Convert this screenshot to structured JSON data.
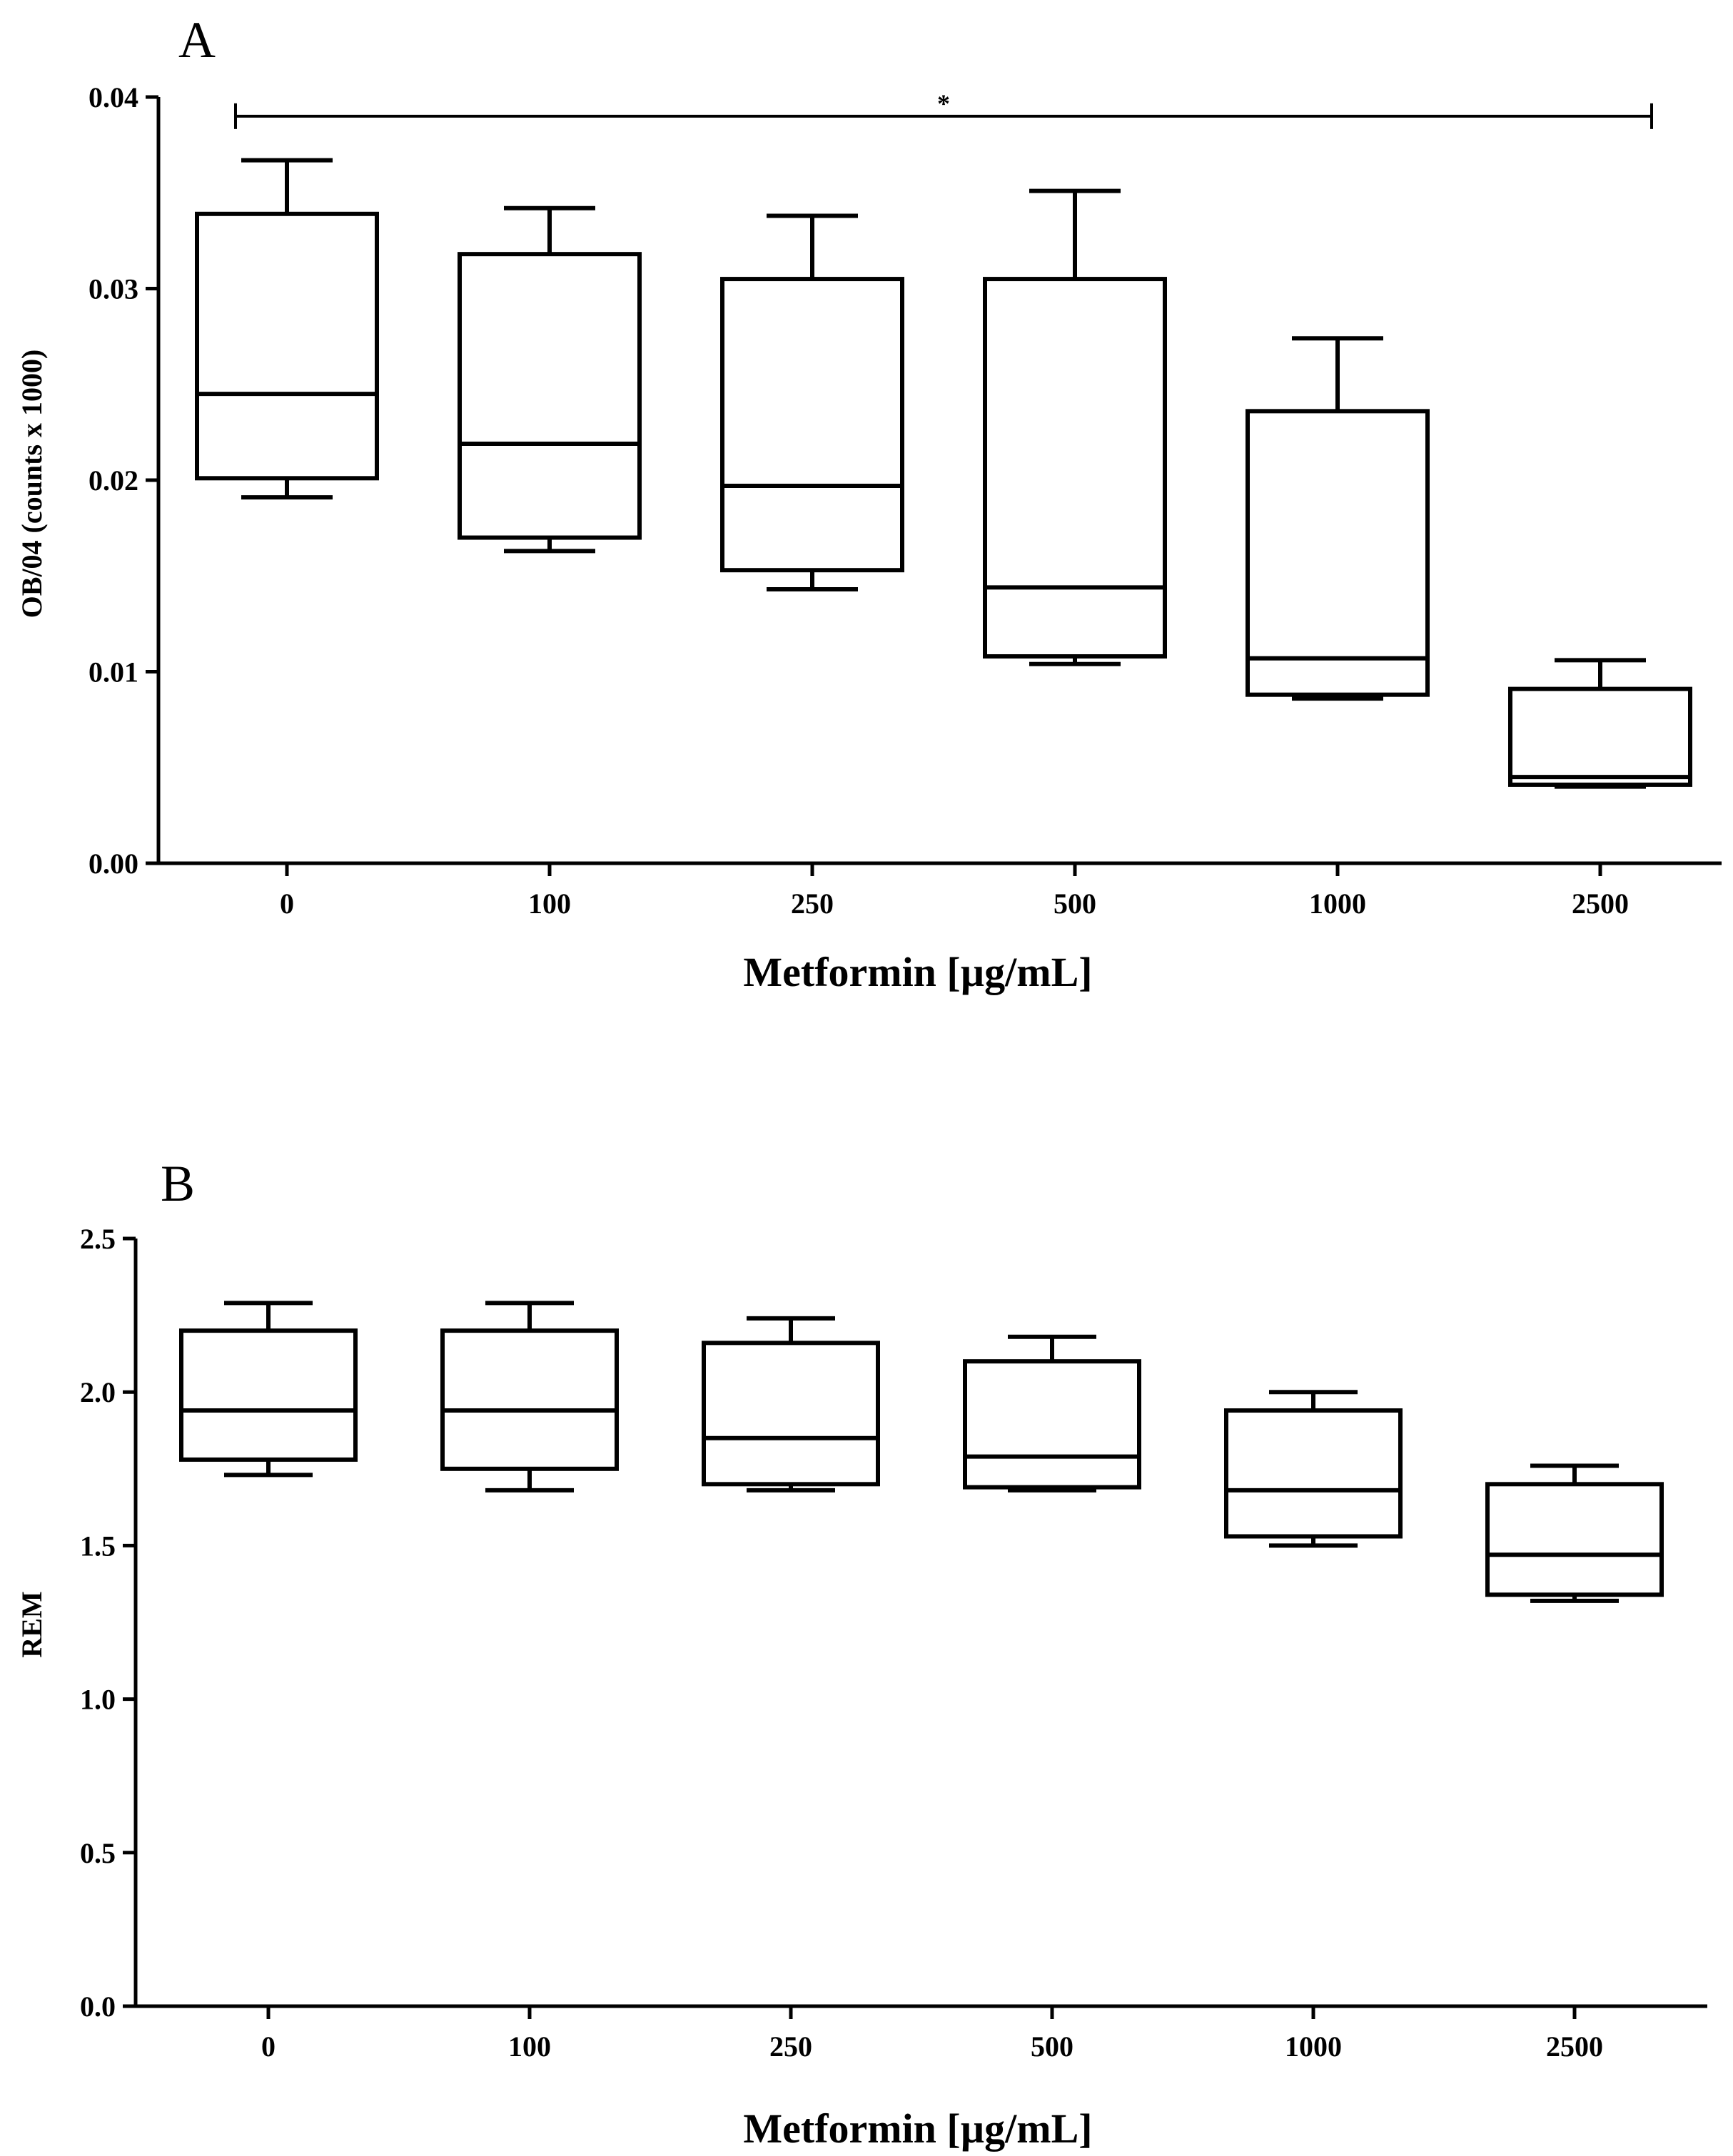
{
  "chart_data": [
    {
      "type": "box",
      "panel_label": "A",
      "categories": [
        "0",
        "100",
        "250",
        "500",
        "1000",
        "2500"
      ],
      "xlabel": "Metformin [µg/mL]",
      "ylabel": "OB/04 (counts x 1000)",
      "ylim": [
        0,
        0.04
      ],
      "yticks": [
        0.0,
        0.01,
        0.02,
        0.03,
        0.04
      ],
      "ytick_labels": [
        "0.00",
        "0.01",
        "0.02",
        "0.03",
        "0.04"
      ],
      "boxes": [
        {
          "category": "0",
          "min": 0.0191,
          "q1": 0.0201,
          "median": 0.0245,
          "q3": 0.0339,
          "max": 0.0367
        },
        {
          "category": "100",
          "min": 0.0163,
          "q1": 0.017,
          "median": 0.0219,
          "q3": 0.0318,
          "max": 0.0342
        },
        {
          "category": "250",
          "min": 0.0143,
          "q1": 0.0153,
          "median": 0.0197,
          "q3": 0.0305,
          "max": 0.0338
        },
        {
          "category": "500",
          "min": 0.0104,
          "q1": 0.0108,
          "median": 0.0144,
          "q3": 0.0305,
          "max": 0.0351
        },
        {
          "category": "1000",
          "min": 0.0086,
          "q1": 0.0088,
          "median": 0.0107,
          "q3": 0.0236,
          "max": 0.0274
        },
        {
          "category": "2500",
          "min": 0.004,
          "q1": 0.0041,
          "median": 0.0045,
          "q3": 0.0091,
          "max": 0.0106
        }
      ],
      "significance": {
        "from": "0",
        "to": "2500",
        "label": "*",
        "y": 0.039
      }
    },
    {
      "type": "box",
      "panel_label": "B",
      "categories": [
        "0",
        "100",
        "250",
        "500",
        "1000",
        "2500"
      ],
      "xlabel": "Metformin [µg/mL]",
      "ylabel": "REM",
      "ylim": [
        0,
        2.5
      ],
      "yticks": [
        0.0,
        0.5,
        1.0,
        1.5,
        2.0,
        2.5
      ],
      "ytick_labels": [
        "0.0",
        "0.5",
        "1.0",
        "1.5",
        "2.0",
        "2.5"
      ],
      "boxes": [
        {
          "category": "0",
          "min": 1.73,
          "q1": 1.78,
          "median": 1.94,
          "q3": 2.2,
          "max": 2.29
        },
        {
          "category": "100",
          "min": 1.68,
          "q1": 1.75,
          "median": 1.94,
          "q3": 2.2,
          "max": 2.29
        },
        {
          "category": "250",
          "min": 1.68,
          "q1": 1.7,
          "median": 1.85,
          "q3": 2.16,
          "max": 2.24
        },
        {
          "category": "500",
          "min": 1.68,
          "q1": 1.69,
          "median": 1.79,
          "q3": 2.1,
          "max": 2.18
        },
        {
          "category": "1000",
          "min": 1.5,
          "q1": 1.53,
          "median": 1.68,
          "q3": 1.94,
          "max": 2.0
        },
        {
          "category": "2500",
          "min": 1.32,
          "q1": 1.34,
          "median": 1.47,
          "q3": 1.7,
          "max": 1.76
        }
      ]
    }
  ]
}
